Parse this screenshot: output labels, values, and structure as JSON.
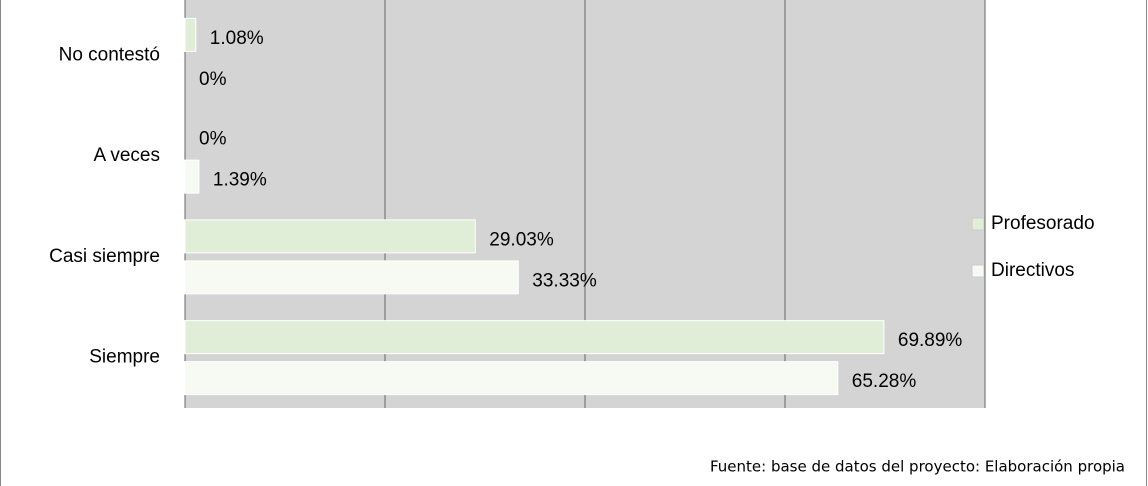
{
  "chart_data": {
    "type": "bar",
    "orientation": "horizontal",
    "categories": [
      "No contestó",
      "A veces",
      "Casi siempre",
      "Siempre"
    ],
    "series": [
      {
        "name": "Profesorado",
        "color": "#e0eed8",
        "values": [
          1.08,
          0,
          29.03,
          69.89
        ],
        "value_labels": [
          "1.08%",
          "0%",
          "29.03%",
          "69.89%"
        ]
      },
      {
        "name": "Directivos",
        "color": "#f6faf3",
        "values": [
          0,
          1.39,
          33.33,
          65.28
        ],
        "value_labels": [
          "0%",
          "1.39%",
          "33.33%",
          "65.28%"
        ]
      }
    ],
    "xlim": [
      0,
      80
    ],
    "xticks": [
      0,
      20,
      40,
      60,
      80
    ],
    "grid": true,
    "legend": "right",
    "source": "Fuente: base de datos del proyecto: Elaboración propia"
  }
}
